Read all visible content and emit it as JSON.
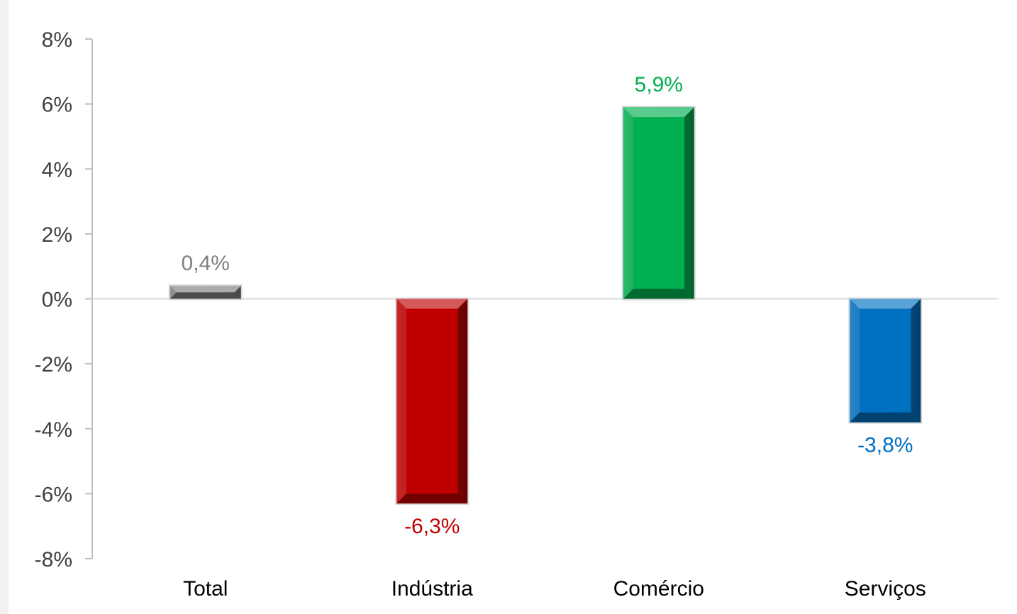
{
  "chart_data": {
    "type": "bar",
    "categories": [
      "Total",
      "Indústria",
      "Comércio",
      "Serviços"
    ],
    "values": [
      0.4,
      -6.3,
      5.9,
      -3.8
    ],
    "data_labels": [
      "0,4%",
      "-6,3%",
      "5,9%",
      "-3,8%"
    ],
    "colors": [
      "#7f7f7f",
      "#c00000",
      "#00b050",
      "#0070c0"
    ],
    "label_colors": [
      "#7f7f7f",
      "#c00000",
      "#00b050",
      "#0070c0"
    ],
    "ylim": [
      -8,
      8
    ],
    "yticks": [
      8,
      6,
      4,
      2,
      0,
      -2,
      -4,
      -6,
      -8
    ],
    "ytick_labels": [
      "8%",
      "6%",
      "4%",
      "2%",
      "0%",
      "-2%",
      "-4%",
      "-6%",
      "-8%"
    ],
    "grid": false,
    "legend": "none"
  }
}
